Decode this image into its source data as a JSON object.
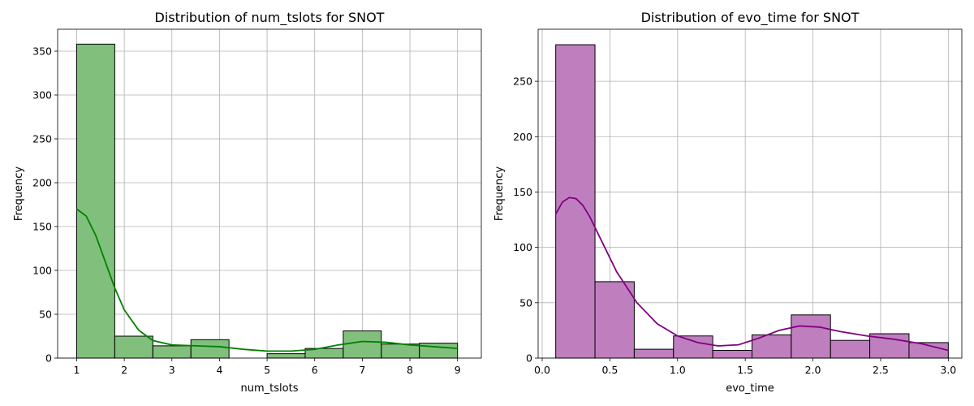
{
  "chart_data": [
    {
      "type": "bar",
      "subtype": "histogram",
      "title": "Distribution of num_tslots for SNOT",
      "xlabel": "num_tslots",
      "ylabel": "Frequency",
      "xlim": [
        0.6,
        9.5
      ],
      "ylim": [
        0,
        375
      ],
      "xticks": [
        1,
        2,
        3,
        4,
        5,
        6,
        7,
        8,
        9
      ],
      "yticks": [
        0,
        50,
        100,
        150,
        200,
        250,
        300,
        350
      ],
      "grid": true,
      "color": "#81c07c",
      "edge_color": "#000000",
      "kde_color": "#008000",
      "bins": [
        {
          "x0": 1.0,
          "x1": 1.8,
          "value": 358
        },
        {
          "x0": 1.8,
          "x1": 2.6,
          "value": 25
        },
        {
          "x0": 2.6,
          "x1": 3.4,
          "value": 14
        },
        {
          "x0": 3.4,
          "x1": 4.2,
          "value": 21
        },
        {
          "x0": 4.2,
          "x1": 5.0,
          "value": 0
        },
        {
          "x0": 5.0,
          "x1": 5.8,
          "value": 5
        },
        {
          "x0": 5.8,
          "x1": 6.6,
          "value": 11
        },
        {
          "x0": 6.6,
          "x1": 7.4,
          "value": 31
        },
        {
          "x0": 7.4,
          "x1": 8.2,
          "value": 16
        },
        {
          "x0": 8.2,
          "x1": 9.0,
          "value": 17
        }
      ],
      "kde": {
        "x": [
          1.0,
          1.2,
          1.4,
          1.6,
          1.8,
          2.0,
          2.3,
          2.6,
          3.0,
          3.5,
          4.0,
          4.5,
          5.0,
          5.5,
          6.0,
          6.5,
          7.0,
          7.5,
          8.0,
          8.5,
          9.0
        ],
        "y": [
          170,
          162,
          140,
          110,
          80,
          55,
          32,
          20,
          15,
          14,
          13,
          10,
          8,
          8,
          10,
          15,
          19,
          18,
          15,
          13,
          11
        ]
      }
    },
    {
      "type": "bar",
      "subtype": "histogram",
      "title": "Distribution of evo_time for SNOT",
      "xlabel": "evo_time",
      "ylabel": "Frequency",
      "xlim": [
        -0.03,
        3.1
      ],
      "ylim": [
        0,
        297
      ],
      "xticks": [
        0.0,
        0.5,
        1.0,
        1.5,
        2.0,
        2.5,
        3.0
      ],
      "yticks": [
        0,
        50,
        100,
        150,
        200,
        250
      ],
      "grid": true,
      "color": "#bf7fbf",
      "edge_color": "#000000",
      "kde_color": "#800080",
      "bins": [
        {
          "x0": 0.1,
          "x1": 0.39,
          "value": 283
        },
        {
          "x0": 0.39,
          "x1": 0.68,
          "value": 69
        },
        {
          "x0": 0.68,
          "x1": 0.97,
          "value": 8
        },
        {
          "x0": 0.97,
          "x1": 1.26,
          "value": 20
        },
        {
          "x0": 1.26,
          "x1": 1.55,
          "value": 7
        },
        {
          "x0": 1.55,
          "x1": 1.84,
          "value": 21
        },
        {
          "x0": 1.84,
          "x1": 2.13,
          "value": 39
        },
        {
          "x0": 2.13,
          "x1": 2.42,
          "value": 16
        },
        {
          "x0": 2.42,
          "x1": 2.71,
          "value": 22
        },
        {
          "x0": 2.71,
          "x1": 3.0,
          "value": 14
        }
      ],
      "kde": {
        "x": [
          0.1,
          0.15,
          0.2,
          0.25,
          0.3,
          0.35,
          0.45,
          0.55,
          0.7,
          0.85,
          1.0,
          1.15,
          1.3,
          1.45,
          1.6,
          1.75,
          1.9,
          2.05,
          2.2,
          2.4,
          2.6,
          2.8,
          3.0
        ],
        "y": [
          130,
          141,
          145,
          144,
          138,
          128,
          103,
          78,
          50,
          31,
          20,
          14,
          11,
          12,
          18,
          25,
          29,
          28,
          24,
          20,
          17,
          13,
          7
        ]
      }
    }
  ]
}
